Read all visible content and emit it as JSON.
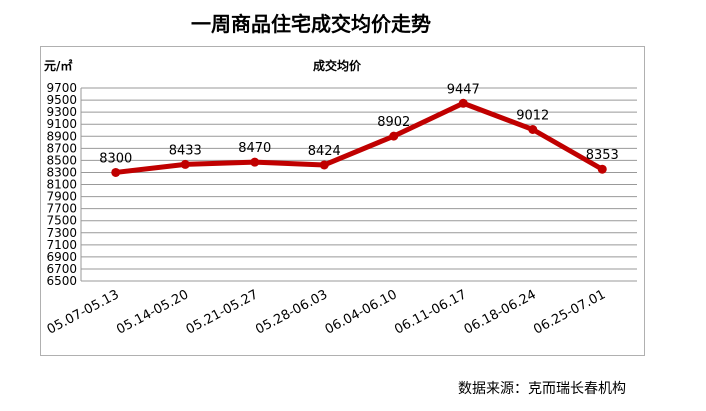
{
  "chart_data": {
    "type": "line",
    "title": "一周商品住宅成交均价走势",
    "subtitle": "成交均价",
    "ylabel": "元/㎡",
    "categories": [
      "05.07-05.13",
      "05.14-05.20",
      "05.21-05.27",
      "05.28-06.03",
      "06.04-06.10",
      "06.11-06.17",
      "06.18-06.24",
      "06.25-07.01"
    ],
    "series": [
      {
        "values": [
          8300,
          8433,
          8470,
          8424,
          8902,
          9447,
          9012,
          8353
        ]
      }
    ],
    "ylim": [
      6500,
      9700
    ],
    "ytick_step": 200,
    "grid": true,
    "line_color": "#c00000"
  },
  "source_text": "数据来源：克而瑞长春机构"
}
